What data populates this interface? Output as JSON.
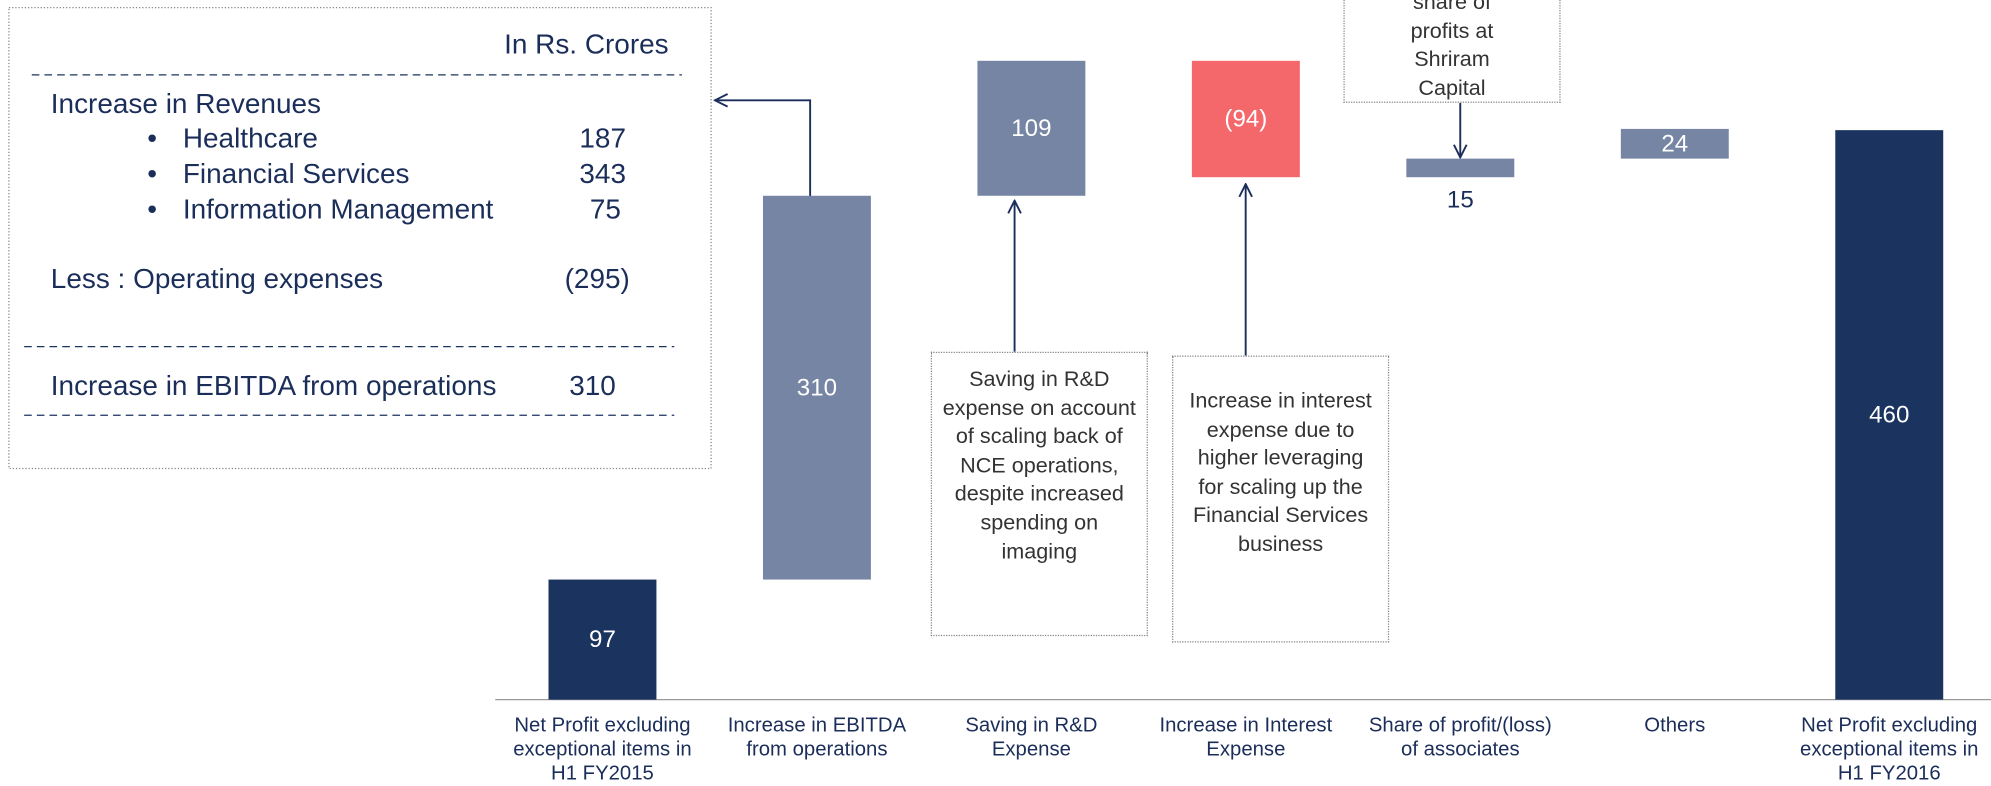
{
  "chart_data": {
    "type": "waterfall",
    "categories": [
      "Net Profit excluding exceptional items in H1 FY2015",
      "Increase in EBITDA from operations",
      "Saving in R&D Expense",
      "Increase in Interest Expense",
      "Share of profit/(loss) of associates",
      "Others",
      "Net Profit excluding exceptional items in H1 FY2016"
    ],
    "values": [
      97,
      310,
      109,
      -94,
      15,
      24,
      460
    ],
    "value_labels": [
      "97",
      "310",
      "109",
      "(94)",
      "15",
      "24",
      "460"
    ],
    "colors": [
      "#1b335f",
      "#7585a3",
      "#7585a3",
      "#f4676a",
      "#7585a3",
      "#7585a3",
      "#1b335f"
    ],
    "annotations": [
      "Saving in R&D expense on account of scaling back of NCE operations, despite increased spending on imaging",
      "Increase in interest expense due to higher leveraging for scaling up the Financial Services business",
      "share of profits at Shriram Capital"
    ]
  },
  "breakdown": {
    "unit": "In Rs. Crores",
    "heading": "Increase in Revenues",
    "items": [
      {
        "label": "Healthcare",
        "value": "187"
      },
      {
        "label": "Financial Services",
        "value": "343"
      },
      {
        "label": "Information Management",
        "value": "75"
      }
    ],
    "less": {
      "label": "Less : Operating expenses",
      "value": "(295)"
    },
    "total": {
      "label": "Increase in EBITDA from operations",
      "value": "310"
    }
  }
}
